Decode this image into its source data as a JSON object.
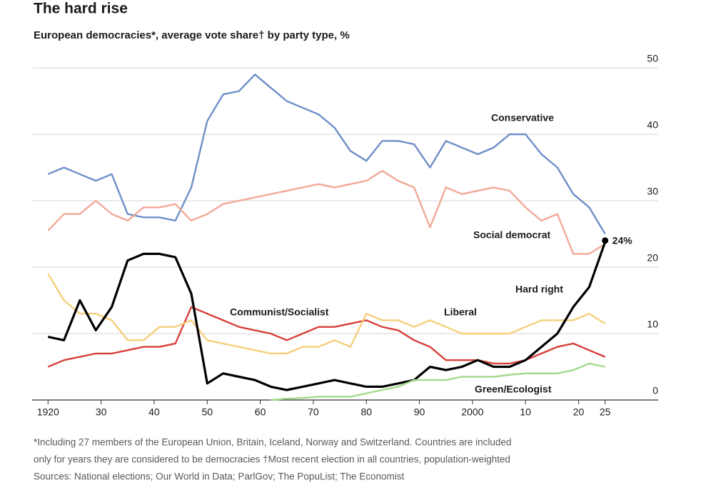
{
  "chart_data": {
    "type": "line",
    "title": "The hard rise",
    "subtitle": "European democracies*, average vote share† by party type, %",
    "notes": [
      "*Including 27 members of the European Union, Britain, Iceland, Norway and Switzerland. Countries are included",
      "only for years they are considered to be democracies   †Most recent election in all countries, population-weighted",
      "Sources: National elections; Our World in Data; ParlGov; The PopuList; The Economist"
    ],
    "x": [
      1920,
      1923,
      1926,
      1929,
      1932,
      1935,
      1938,
      1941,
      1944,
      1947,
      1950,
      1953,
      1956,
      1959,
      1962,
      1965,
      1968,
      1971,
      1974,
      1977,
      1980,
      1983,
      1986,
      1989,
      1992,
      1995,
      1998,
      2001,
      2004,
      2007,
      2010,
      2013,
      2016,
      2019,
      2022,
      2025
    ],
    "series": [
      {
        "name": "Conservative",
        "color": "#6f8fc9",
        "label_color": "#5b7fbf",
        "values": [
          34,
          35,
          34,
          33,
          34,
          28,
          27.5,
          27.5,
          27,
          32,
          42,
          46,
          46.5,
          49,
          47,
          45,
          44,
          43,
          41,
          37.5,
          36,
          39,
          39,
          38.5,
          35,
          39,
          38,
          37,
          38,
          40,
          40,
          37,
          35,
          31,
          29,
          25
        ]
      },
      {
        "name": "Social democrat",
        "color": "#f2a999",
        "label_color": "#d2493c",
        "values": [
          25.5,
          28,
          28,
          30,
          28,
          27,
          29,
          29,
          29.5,
          27,
          28,
          29.5,
          30,
          30.5,
          31,
          31.5,
          32,
          32.5,
          32,
          32.5,
          33,
          34.5,
          33,
          32,
          26,
          32,
          31,
          31.5,
          32,
          31.5,
          29,
          27,
          28,
          22,
          22,
          23.5
        ]
      },
      {
        "name": "Communist/Socialist",
        "color": "#d8403a",
        "label_color": "#c8332e",
        "values": [
          5,
          6,
          6.5,
          7,
          7,
          7.5,
          8,
          8,
          8.5,
          14,
          13,
          12,
          11,
          10.5,
          10,
          9,
          10,
          11,
          11,
          11.5,
          12,
          11,
          10.5,
          9,
          8,
          6,
          6,
          6,
          5.5,
          5.5,
          6,
          7,
          8,
          8.5,
          7.5,
          6.5
        ]
      },
      {
        "name": "Liberal",
        "color": "#f5cf7c",
        "label_color": "#c8692b",
        "values": [
          19,
          15,
          13,
          13,
          12,
          9,
          9,
          11,
          11,
          12,
          9,
          8.5,
          8,
          7.5,
          7,
          7,
          8,
          8,
          9,
          8,
          13,
          12,
          12,
          11,
          12,
          11,
          10,
          10,
          10,
          10,
          11,
          12,
          12,
          12,
          13,
          11.5
        ]
      },
      {
        "name": "Hard right",
        "color": "#000000",
        "label_color": "#000000",
        "values": [
          9.5,
          9,
          15,
          10.5,
          14,
          21,
          22,
          22,
          21.5,
          16,
          2.5,
          4,
          3.5,
          3,
          2,
          1.5,
          2,
          2.5,
          3,
          2.5,
          2,
          2,
          2.5,
          3,
          5,
          4.5,
          5,
          6,
          5,
          5,
          6,
          8,
          10,
          14,
          17,
          23.8
        ]
      },
      {
        "name": "Green/Ecologist",
        "color": "#a3d98d",
        "label_color": "#3f7d2f",
        "values": [
          null,
          null,
          null,
          null,
          null,
          null,
          null,
          null,
          null,
          null,
          null,
          null,
          null,
          null,
          0,
          0.2,
          0.3,
          0.5,
          0.5,
          0.5,
          1,
          1.5,
          2,
          3,
          3,
          3,
          3.5,
          3.5,
          3.5,
          3.8,
          4,
          4,
          4,
          4.5,
          5.5,
          5
        ]
      }
    ],
    "annotation": {
      "text": "24%",
      "x": 2025,
      "y": 24
    },
    "xlim": [
      1917,
      2035
    ],
    "ylim": [
      0,
      50
    ],
    "xticks": [
      1920,
      {
        "value": 1930,
        "label": "30"
      },
      {
        "value": 1940,
        "label": "40"
      },
      {
        "value": 1950,
        "label": "50"
      },
      {
        "value": 1960,
        "label": "60"
      },
      {
        "value": 1970,
        "label": "70"
      },
      {
        "value": 1980,
        "label": "80"
      },
      {
        "value": 1990,
        "label": "90"
      },
      2000,
      {
        "value": 2010,
        "label": "10"
      },
      {
        "value": 2020,
        "label": "20"
      },
      {
        "value": 2025,
        "label": "25"
      }
    ],
    "yticks": [
      0,
      10,
      20,
      30,
      40,
      50
    ],
    "grid": true
  }
}
